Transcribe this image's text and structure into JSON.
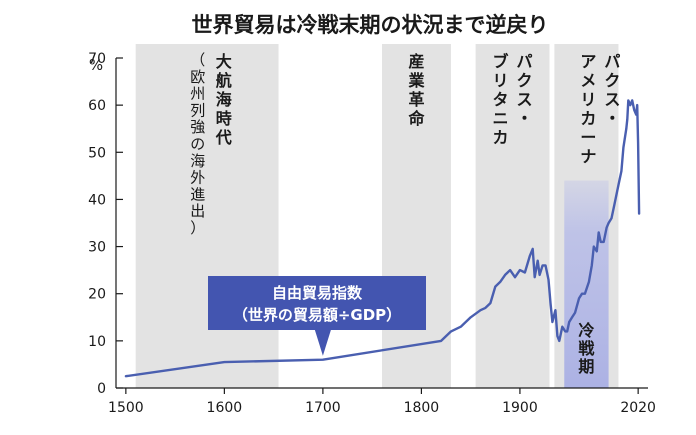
{
  "chart_data": {
    "type": "line",
    "title": "世界貿易は冷戦末期の状況まで逆戻り",
    "ylabel": "%",
    "xlim": [
      1490,
      2030
    ],
    "ylim": [
      0,
      70
    ],
    "x_ticks": [
      1500,
      1600,
      1700,
      1800,
      1900,
      2020
    ],
    "y_ticks": [
      0,
      10,
      20,
      30,
      40,
      50,
      60,
      70
    ],
    "grid": false,
    "series": [
      {
        "name": "自由貿易指数",
        "color": "#4a5fb0",
        "x": [
          1500,
          1600,
          1700,
          1820,
          1830,
          1840,
          1850,
          1860,
          1865,
          1870,
          1875,
          1880,
          1885,
          1890,
          1895,
          1900,
          1905,
          1910,
          1913,
          1915,
          1918,
          1920,
          1923,
          1926,
          1929,
          1931,
          1933,
          1936,
          1938,
          1940,
          1943,
          1946,
          1948,
          1950,
          1953,
          1956,
          1960,
          1963,
          1966,
          1970,
          1973,
          1975,
          1978,
          1980,
          1982,
          1985,
          1988,
          1990,
          1993,
          1996,
          2000,
          2003,
          2005,
          2008,
          2009,
          2010,
          2012,
          2014,
          2016,
          2018,
          2019,
          2020,
          2021
        ],
        "values": [
          2.5,
          5.5,
          6,
          10,
          12,
          13,
          15,
          16.5,
          17,
          18,
          21.5,
          22.5,
          24,
          25,
          23.5,
          25,
          24.5,
          28,
          29.5,
          23.5,
          27,
          24,
          26,
          26,
          23,
          18,
          14,
          16.5,
          11,
          10,
          13,
          12,
          12,
          14,
          15,
          16,
          19,
          20,
          20,
          22.5,
          26,
          30,
          29,
          33,
          31,
          31,
          34,
          35,
          36,
          39,
          43,
          46,
          51,
          55,
          57,
          61,
          60,
          61,
          59,
          58,
          60,
          52,
          37
        ]
      }
    ],
    "bands": [
      {
        "label": "大航海時代",
        "sublabel": "（欧州列強の海外進出）",
        "x_start": 1510,
        "x_end": 1655
      },
      {
        "label": "産業革命",
        "x_start": 1760,
        "x_end": 1830
      },
      {
        "label": "パクス・ブリタニカ",
        "x_start": 1855,
        "x_end": 1930
      },
      {
        "label": "パクス・アメリカーナ",
        "x_start": 1935,
        "x_end": 2000
      }
    ],
    "highlight_band": {
      "label": "冷戦期",
      "x_start": 1945,
      "x_end": 1990
    },
    "callout": {
      "lines": [
        "自由貿易指数",
        "（世界の貿易額÷GDP）"
      ],
      "x": 1700,
      "y": 6
    }
  }
}
